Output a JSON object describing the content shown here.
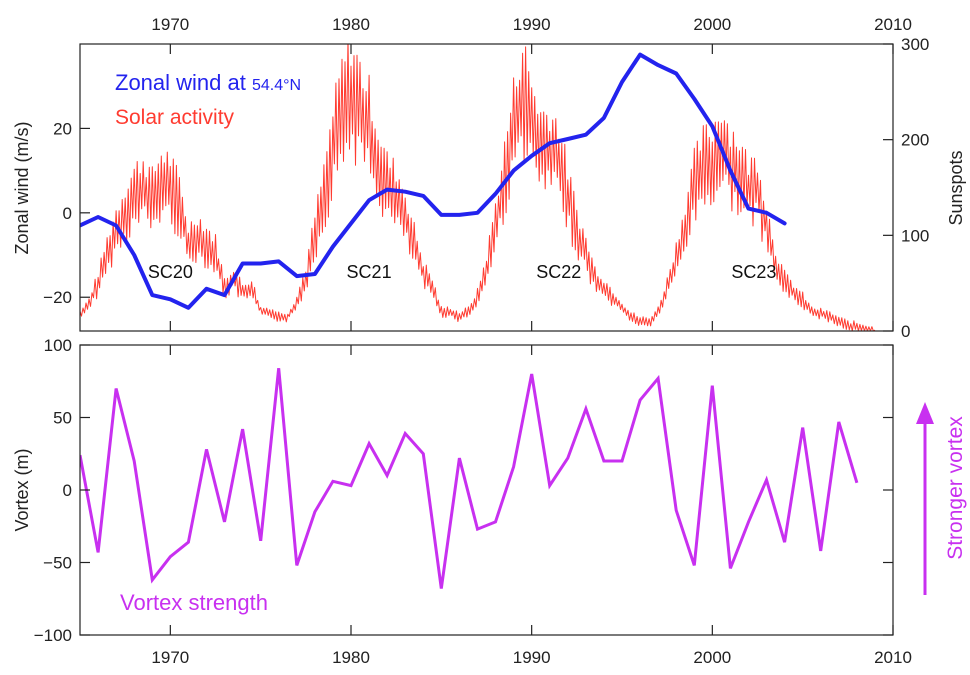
{
  "chart_data": [
    {
      "type": "line",
      "panel": "top",
      "ylabel_left": "Zonal wind (m/s)",
      "ylabel_right": "Sunspots",
      "xlim": [
        1965,
        2010
      ],
      "ylim_left": [
        -28,
        40
      ],
      "ylim_right": [
        0,
        300
      ],
      "x_ticks": [
        1970,
        1980,
        1990,
        2000,
        2010
      ],
      "x_tick_labels": [
        "1970",
        "1980",
        "1990",
        "2000",
        "2010"
      ],
      "y_ticks_left": [
        -20,
        0,
        20
      ],
      "y_tick_labels_left": [
        "−20",
        "0",
        "20"
      ],
      "y_ticks_right": [
        0,
        100,
        200,
        300
      ],
      "y_tick_labels_right": [
        "0",
        "100",
        "200",
        "300"
      ],
      "legend": {
        "placement": "top-left",
        "entries": [
          {
            "label_main": "Zonal wind at ",
            "label_sub": "54.4°N",
            "color": "#2323ee"
          },
          {
            "label_main": "Solar activity",
            "label_sub": "",
            "color": "#ff3b30"
          }
        ]
      },
      "annotations": [
        {
          "text": "SC20",
          "x": 1970,
          "y": -14
        },
        {
          "text": "SC21",
          "x": 1981,
          "y": -14
        },
        {
          "text": "SC22",
          "x": 1991.5,
          "y": -14
        },
        {
          "text": "SC23",
          "x": 2002.3,
          "y": -14
        }
      ],
      "series": [
        {
          "name": "Zonal wind at 54.4°N",
          "axis": "left",
          "color": "#2323ee",
          "x": [
            1965,
            1966,
            1967,
            1968,
            1969,
            1970,
            1971,
            1972,
            1973,
            1974,
            1975,
            1976,
            1977,
            1978,
            1979,
            1980,
            1981,
            1982,
            1983,
            1984,
            1985,
            1986,
            1987,
            1988,
            1989,
            1990,
            1991,
            1992,
            1993,
            1994,
            1995,
            1996,
            1997,
            1998,
            1999,
            2000,
            2001,
            2002,
            2003,
            2004
          ],
          "y": [
            -3,
            -1,
            -3,
            -10,
            -19.5,
            -20.5,
            -22.5,
            -18,
            -19.5,
            -12,
            -12,
            -11.5,
            -15,
            -14.5,
            -8,
            -2.5,
            3,
            5.5,
            5,
            4,
            -0.5,
            -0.5,
            0,
            4.5,
            10,
            13.5,
            16.5,
            17.5,
            18.5,
            22.5,
            31,
            37.5,
            35,
            33,
            27,
            20.5,
            10,
            1,
            0,
            -2.5
          ]
        },
        {
          "name": "Solar activity",
          "axis": "right",
          "color": "#ff3b30",
          "x": [
            1964.0,
            1964.5,
            1965.0,
            1965.5,
            1966.0,
            1966.5,
            1967.0,
            1967.5,
            1968.0,
            1968.5,
            1969.0,
            1969.5,
            1970.0,
            1970.5,
            1971.0,
            1971.5,
            1972.0,
            1972.5,
            1973.0,
            1973.5,
            1974.0,
            1974.5,
            1975.0,
            1975.5,
            1976.0,
            1976.5,
            1977.0,
            1977.5,
            1978.0,
            1978.5,
            1979.0,
            1979.5,
            1980.0,
            1980.5,
            1981.0,
            1981.5,
            1982.0,
            1982.5,
            1983.0,
            1983.5,
            1984.0,
            1984.5,
            1985.0,
            1985.5,
            1986.0,
            1986.5,
            1987.0,
            1987.5,
            1988.0,
            1988.5,
            1989.0,
            1989.5,
            1990.0,
            1990.5,
            1991.0,
            1991.5,
            1992.0,
            1992.5,
            1993.0,
            1993.5,
            1994.0,
            1994.5,
            1995.0,
            1995.5,
            1996.0,
            1996.5,
            1997.0,
            1997.5,
            1998.0,
            1998.5,
            1999.0,
            1999.5,
            2000.0,
            2000.5,
            2001.0,
            2001.5,
            2002.0,
            2002.5,
            2003.0,
            2003.5,
            2004.0,
            2004.5,
            2005.0,
            2005.5,
            2006.0,
            2006.5,
            2007.0,
            2007.5,
            2008.0,
            2008.5,
            2009.0
          ],
          "y": [
            8,
            12,
            16,
            28,
            50,
            80,
            105,
            125,
            140,
            150,
            135,
            155,
            150,
            130,
            90,
            100,
            90,
            80,
            45,
            55,
            40,
            45,
            20,
            20,
            15,
            15,
            30,
            55,
            100,
            140,
            190,
            230,
            250,
            230,
            210,
            175,
            150,
            140,
            120,
            90,
            60,
            45,
            20,
            20,
            15,
            20,
            35,
            65,
            110,
            160,
            210,
            250,
            215,
            190,
            190,
            180,
            140,
            105,
            80,
            55,
            45,
            35,
            25,
            15,
            10,
            9,
            20,
            45,
            75,
            110,
            150,
            170,
            175,
            195,
            175,
            165,
            145,
            150,
            110,
            70,
            50,
            40,
            32,
            20,
            18,
            15,
            10,
            6,
            4,
            2,
            1
          ]
        }
      ]
    },
    {
      "type": "line",
      "panel": "bottom",
      "ylabel": "Vortex (m)",
      "xlim": [
        1965,
        2010
      ],
      "ylim": [
        -100,
        100
      ],
      "x_ticks": [
        1970,
        1980,
        1990,
        2000,
        2010
      ],
      "x_tick_labels": [
        "1970",
        "1980",
        "1990",
        "2000",
        "2010"
      ],
      "y_ticks": [
        -100,
        -50,
        0,
        50,
        100
      ],
      "y_tick_labels": [
        "−100",
        "−50",
        "0",
        "50",
        "100"
      ],
      "legend": {
        "placement": "bottom-left",
        "entries": [
          {
            "label": "Vortex strength",
            "color": "#c830f0"
          }
        ]
      },
      "side_annotation": {
        "text": "Stronger vortex",
        "color": "#c830f0"
      },
      "series": [
        {
          "name": "Vortex strength",
          "color": "#c830f0",
          "x": [
            1965,
            1966,
            1967,
            1968,
            1969,
            1970,
            1971,
            1972,
            1973,
            1974,
            1975,
            1976,
            1977,
            1978,
            1979,
            1980,
            1981,
            1982,
            1983,
            1984,
            1985,
            1986,
            1987,
            1988,
            1989,
            1990,
            1991,
            1992,
            1993,
            1994,
            1995,
            1996,
            1997,
            1998,
            1999,
            2000,
            2001,
            2002,
            2003,
            2004,
            2005,
            2006,
            2007,
            2008
          ],
          "y": [
            24,
            -43,
            70,
            20,
            -62,
            -46,
            -36,
            28,
            -22,
            42,
            -35,
            84,
            -52,
            -15,
            6,
            3,
            32,
            10,
            39,
            25,
            -68,
            22,
            -27,
            -22,
            16,
            80,
            3,
            22,
            56,
            20,
            20,
            62,
            77,
            -14,
            -52,
            72,
            -54,
            -22,
            7,
            -36,
            43,
            -42,
            47,
            5
          ]
        }
      ]
    }
  ]
}
